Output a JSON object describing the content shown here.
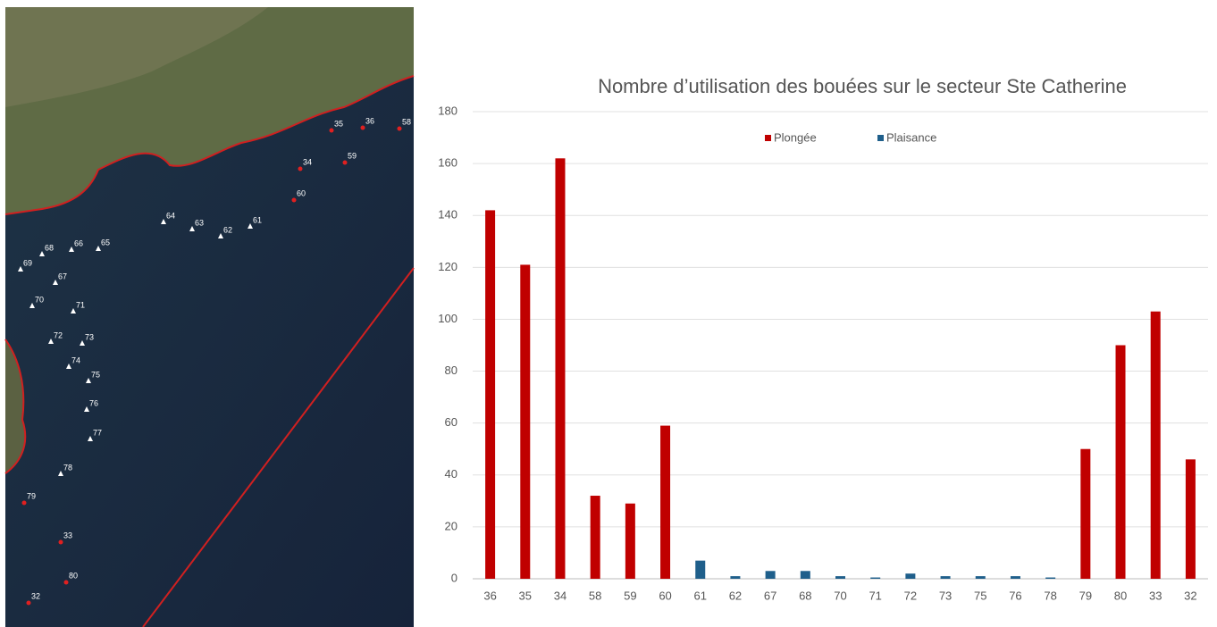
{
  "map": {
    "markers": [
      "35",
      "36",
      "58",
      "34",
      "59",
      "60",
      "64",
      "63",
      "62",
      "61",
      "68",
      "66",
      "65",
      "69",
      "67",
      "70",
      "71",
      "72",
      "73",
      "74",
      "75",
      "76",
      "77",
      "78",
      "79",
      "33",
      "80",
      "32"
    ]
  },
  "chart_data": {
    "type": "bar",
    "title": "Nombre d’utilisation des bouées sur le secteur Ste Catherine",
    "categories": [
      "36",
      "35",
      "34",
      "58",
      "59",
      "60",
      "61",
      "62",
      "67",
      "68",
      "70",
      "71",
      "72",
      "73",
      "75",
      "76",
      "78",
      "79",
      "80",
      "33",
      "32"
    ],
    "series": [
      {
        "name": "Plongée",
        "color": "#c00000",
        "values": [
          142,
          121,
          162,
          32,
          29,
          59,
          null,
          null,
          null,
          null,
          null,
          null,
          null,
          null,
          null,
          null,
          null,
          50,
          90,
          103,
          46
        ]
      },
      {
        "name": "Plaisance",
        "color": "#1f5f8b",
        "values": [
          null,
          null,
          null,
          null,
          null,
          null,
          7,
          1,
          3,
          3,
          1,
          0.5,
          2,
          1,
          1,
          1,
          0.5,
          null,
          null,
          null,
          null
        ]
      }
    ],
    "ylim": [
      0,
      180
    ],
    "yticks": [
      0,
      20,
      40,
      60,
      80,
      100,
      120,
      140,
      160,
      180
    ],
    "grid": true,
    "legend": "top"
  }
}
